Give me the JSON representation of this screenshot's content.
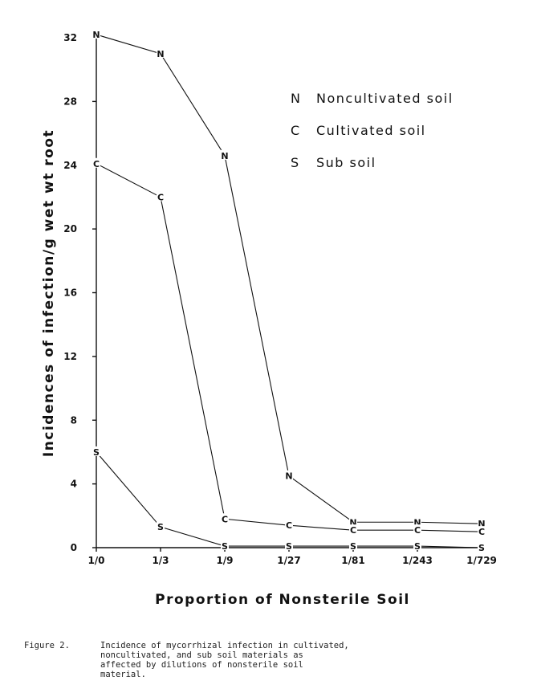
{
  "chart_data": {
    "type": "line",
    "title": "",
    "xlabel": "Proportion of Nonsterile Soil",
    "ylabel": "Incidences of infection/g wet wt root",
    "categories": [
      "1/0",
      "1/3",
      "1/9",
      "1/27",
      "1/81",
      "1/243",
      "1/729"
    ],
    "ylim": [
      0,
      32
    ],
    "yticks": [
      0,
      4,
      8,
      12,
      16,
      20,
      24,
      28,
      32
    ],
    "grid": false,
    "legend_position": "top-right",
    "series": [
      {
        "name": "Noncultivated soil",
        "marker": "N",
        "values": [
          32.2,
          31.0,
          24.6,
          4.5,
          1.6,
          1.6,
          1.5
        ]
      },
      {
        "name": "Cultivated soil",
        "marker": "C",
        "values": [
          24.1,
          22.0,
          1.8,
          1.4,
          1.1,
          1.1,
          1.0
        ]
      },
      {
        "name": "Sub soil",
        "marker": "S",
        "values": [
          6.0,
          1.3,
          0.1,
          0.1,
          0.1,
          0.1,
          0.0
        ]
      }
    ],
    "legend": [
      {
        "marker": "N",
        "label": "Noncultivated soil"
      },
      {
        "marker": "C",
        "label": "Cultivated  soil"
      },
      {
        "marker": "S",
        "label": "Sub  soil"
      }
    ]
  },
  "caption": {
    "label": "Figure 2.",
    "text": "Incidence of mycorrhizal infection in cultivated,\nnoncultivated, and sub soil materials as\naffected by dilutions of nonsterile soil\nmaterial."
  }
}
